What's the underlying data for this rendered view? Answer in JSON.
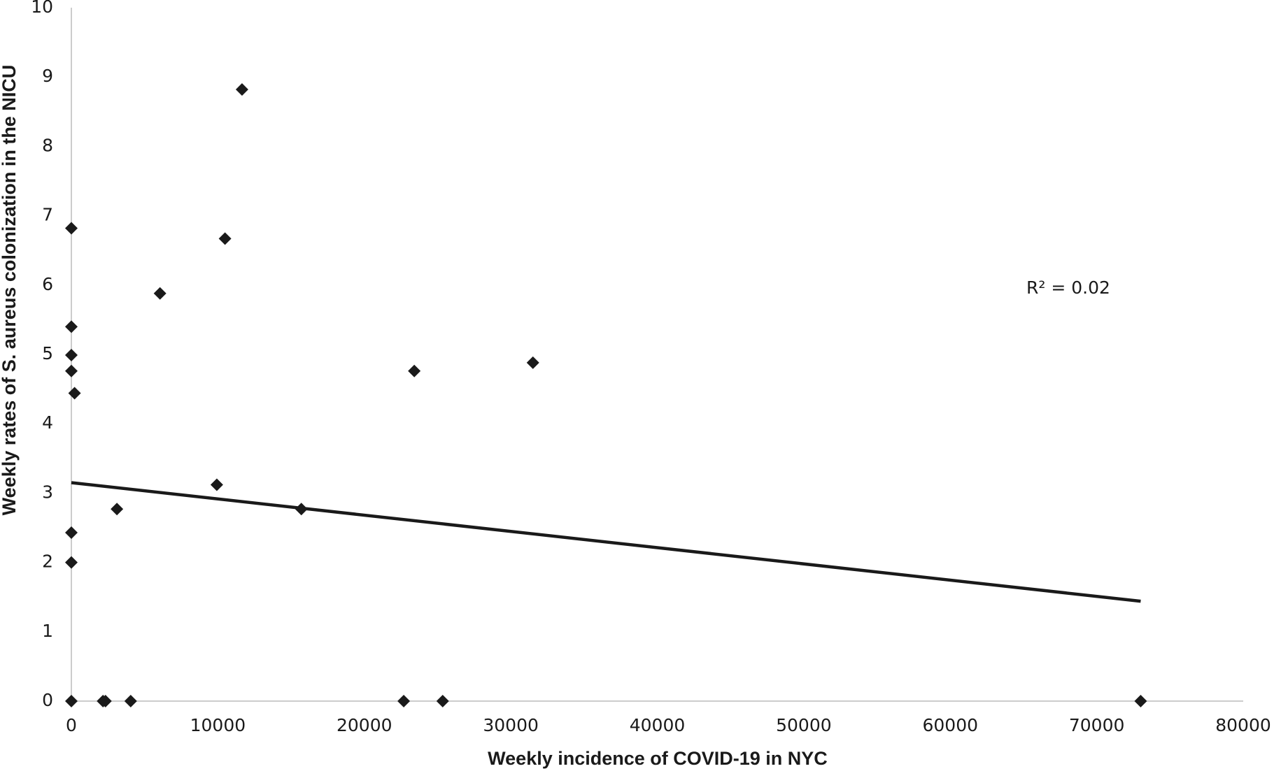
{
  "chart_data": {
    "type": "scatter",
    "x_label": "Weekly incidence of COVID-19 in NYC",
    "y_label": "Weekly rates of S. aureus colonization in the NICU",
    "annotation": "R² = 0.02",
    "x": [
      0,
      2160,
      2330,
      4050,
      22690,
      25350,
      73000,
      0,
      0,
      0,
      0,
      0,
      0,
      220,
      3110,
      6050,
      9930,
      10490,
      11650,
      15700,
      23410,
      31510
    ],
    "values": [
      0,
      0,
      0,
      0,
      0,
      0,
      0,
      2.0,
      2.43,
      6.82,
      5.4,
      4.99,
      4.76,
      4.44,
      2.77,
      5.88,
      3.12,
      6.67,
      8.82,
      2.77,
      4.76,
      4.88
    ],
    "color": "#1a1a1a",
    "trendline": {
      "x": [
        0,
        73000
      ],
      "values": [
        3.15,
        1.44
      ],
      "color": "#1a1a1a"
    },
    "xlim": [
      0,
      80000
    ],
    "xticks": [
      0,
      10000,
      20000,
      30000,
      40000,
      50000,
      60000,
      70000,
      80000
    ],
    "ylim": [
      0,
      10
    ],
    "yticks": [
      0,
      1,
      2,
      3,
      4,
      5,
      6,
      7,
      8,
      9,
      10
    ],
    "grid": false
  }
}
